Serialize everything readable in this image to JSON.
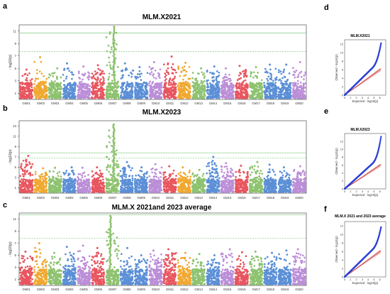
{
  "figure": {
    "panel_letters": [
      "a",
      "b",
      "c",
      "d",
      "e",
      "f"
    ]
  },
  "chart_data": [
    {
      "type": "scatter",
      "subtype": "manhattan",
      "panel": "a",
      "title": "MLM.X2021",
      "xlabel": "",
      "ylabel": "- log10(p)",
      "ylim": [
        0,
        12
      ],
      "yticks": [
        1,
        3,
        5,
        7,
        9,
        11
      ],
      "significance_lines": [
        7.7,
        10.7
      ],
      "chromosomes": [
        "GM01",
        "GM02",
        "GM03",
        "GM04",
        "GM05",
        "GM06",
        "GM07",
        "GM08",
        "GM09",
        "GM10",
        "GM11",
        "GM12",
        "GM13",
        "GM14",
        "GM15",
        "GM16",
        "GM17",
        "GM18",
        "GM19",
        "GM20"
      ],
      "peaks": [
        4.8,
        6.8,
        5.0,
        5.8,
        5.3,
        5.5,
        11.7,
        5.8,
        5.2,
        6.0,
        6.9,
        5.9,
        5.0,
        5.3,
        5.0,
        5.4,
        5.2,
        5.6,
        5.6,
        6.0
      ],
      "colors": [
        "#e8555e",
        "#f0a830",
        "#8dc26f",
        "#5b8fd6",
        "#bb8ed8",
        "#e8555e",
        "#8dc26f",
        "#5b8fd6",
        "#5b8fd6",
        "#bb8ed8",
        "#e8555e",
        "#f0a830",
        "#8dc26f",
        "#5b8fd6",
        "#bb8ed8",
        "#e8555e",
        "#8dc26f",
        "#5b8fd6",
        "#5b8fd6",
        "#bb8ed8"
      ]
    },
    {
      "type": "scatter",
      "subtype": "manhattan",
      "panel": "b",
      "title": "MLM.X2023",
      "xlabel": "",
      "ylabel": "- log10(p)",
      "ylim": [
        0,
        14
      ],
      "yticks": [
        1,
        3,
        5,
        7,
        9,
        11,
        13
      ],
      "significance_lines": [
        6.8,
        7.8
      ],
      "chromosomes": [
        "GM01",
        "GM02",
        "GM03",
        "GM04",
        "GM05",
        "GM06",
        "GM07",
        "GM08",
        "GM09",
        "GM10",
        "GM11",
        "GM12",
        "GM13",
        "GM14",
        "GM15",
        "GM16",
        "GM17",
        "GM18",
        "GM19",
        "GM20"
      ],
      "peaks": [
        7.2,
        4.8,
        4.9,
        5.0,
        4.9,
        5.0,
        13.3,
        6.0,
        5.0,
        5.6,
        5.2,
        5.0,
        4.5,
        7.0,
        5.8,
        5.3,
        6.0,
        5.5,
        5.0,
        5.2
      ],
      "colors": [
        "#e8555e",
        "#f0a830",
        "#8dc26f",
        "#5b8fd6",
        "#bb8ed8",
        "#e8555e",
        "#8dc26f",
        "#5b8fd6",
        "#5b8fd6",
        "#bb8ed8",
        "#e8555e",
        "#f0a830",
        "#8dc26f",
        "#5b8fd6",
        "#bb8ed8",
        "#e8555e",
        "#8dc26f",
        "#5b8fd6",
        "#5b8fd6",
        "#bb8ed8"
      ]
    },
    {
      "type": "scatter",
      "subtype": "manhattan",
      "panel": "c",
      "title": "MLM.X 2021and 2023 average",
      "xlabel": "",
      "ylabel": "- log10(p)",
      "ylim": [
        0,
        12
      ],
      "yticks": [
        1,
        3,
        5,
        7,
        9,
        11
      ],
      "significance_lines": [
        7.8,
        11.7
      ],
      "chromosomes": [
        "GM01",
        "GM02",
        "GM03",
        "GM04",
        "GM05",
        "GM06",
        "GM07",
        "GM08",
        "GM09",
        "GM10",
        "GM11",
        "GM12",
        "GM13",
        "GM14",
        "GM15",
        "GM16",
        "GM17",
        "GM18",
        "GM19",
        "GM20"
      ],
      "peaks": [
        5.6,
        7.0,
        5.4,
        6.4,
        6.6,
        6.2,
        11.5,
        6.2,
        5.0,
        5.8,
        6.0,
        5.4,
        5.2,
        5.0,
        6.0,
        5.5,
        5.6,
        5.4,
        5.8,
        6.0
      ],
      "colors": [
        "#e8555e",
        "#f0a830",
        "#8dc26f",
        "#5b8fd6",
        "#bb8ed8",
        "#e8555e",
        "#8dc26f",
        "#5b8fd6",
        "#5b8fd6",
        "#bb8ed8",
        "#e8555e",
        "#f0a830",
        "#8dc26f",
        "#5b8fd6",
        "#bb8ed8",
        "#e8555e",
        "#8dc26f",
        "#5b8fd6",
        "#5b8fd6",
        "#bb8ed8"
      ]
    },
    {
      "type": "scatter",
      "subtype": "qq",
      "panel": "d",
      "title": "MLM.X2021",
      "xlabel": "Expected  - log10(p)",
      "ylabel": "Observed  - log10(p)",
      "xlim": [
        0,
        7
      ],
      "ylim": [
        0,
        13
      ],
      "xticks": [
        0,
        1,
        2,
        3,
        4,
        5,
        6
      ],
      "yticks": [
        0,
        2,
        4,
        6,
        8,
        10,
        12
      ],
      "max_expected": 6.2,
      "max_observed": 12.2
    },
    {
      "type": "scatter",
      "subtype": "qq",
      "panel": "e",
      "title": "MLM.X2023",
      "xlabel": "Expected  - log10(p)",
      "ylabel": "Observed  - log10(p)",
      "xlim": [
        0,
        7
      ],
      "ylim": [
        0,
        14
      ],
      "xticks": [
        0,
        1,
        2,
        3,
        4,
        5,
        6
      ],
      "yticks": [
        0,
        2,
        4,
        6,
        8,
        10,
        12
      ],
      "max_expected": 6.2,
      "max_observed": 13.2
    },
    {
      "type": "scatter",
      "subtype": "qq",
      "panel": "f",
      "title": "MLM.X 2021 and 2023 average",
      "xlabel": "Expected  - log10(p)",
      "ylabel": "Observed  - log10(p)",
      "xlim": [
        0,
        7
      ],
      "ylim": [
        0,
        13
      ],
      "xticks": [
        0,
        1,
        2,
        3,
        4,
        5,
        6
      ],
      "yticks": [
        0,
        2,
        4,
        6,
        8,
        10,
        12
      ],
      "max_expected": 6.2,
      "max_observed": 11.7
    }
  ],
  "colors": {
    "axis": "#333333",
    "threshold_line": "#7fc97f",
    "qq_points": "#2a3fd8",
    "qq_line": "#cc2a2a",
    "qq_band": "#e0a0a0"
  }
}
